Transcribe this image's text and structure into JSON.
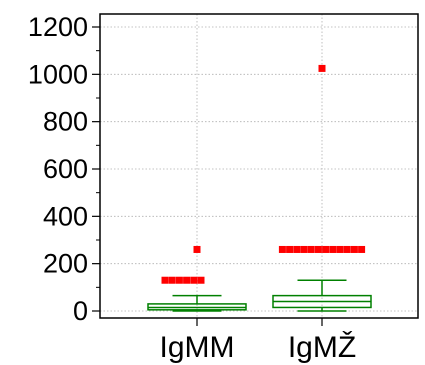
{
  "chart_data": {
    "type": "box",
    "title": "",
    "xlabel": "",
    "ylabel": "",
    "ylim": [
      0,
      1200
    ],
    "yticks": [
      0,
      200,
      400,
      600,
      800,
      1000,
      1200
    ],
    "ytick_labels": [
      "0",
      "200",
      "400",
      "600",
      "800",
      "1000",
      "1200"
    ],
    "categories": [
      "IgMM",
      "IgMŽ"
    ],
    "grid": true,
    "box_color": "#008000",
    "outlier_color": "#ff0000",
    "boxes": [
      {
        "category": "IgMM",
        "whisker_low": 0,
        "q1": 5,
        "median": 15,
        "q3": 30,
        "whisker_high": 65,
        "outliers": [
          130,
          130,
          130,
          130,
          130,
          130,
          260
        ]
      },
      {
        "category": "IgMŽ",
        "whisker_low": 0,
        "q1": 15,
        "median": 40,
        "q3": 65,
        "whisker_high": 130,
        "outliers": [
          260,
          260,
          260,
          260,
          260,
          260,
          260,
          260,
          260,
          260,
          260,
          260,
          1025
        ]
      }
    ]
  }
}
